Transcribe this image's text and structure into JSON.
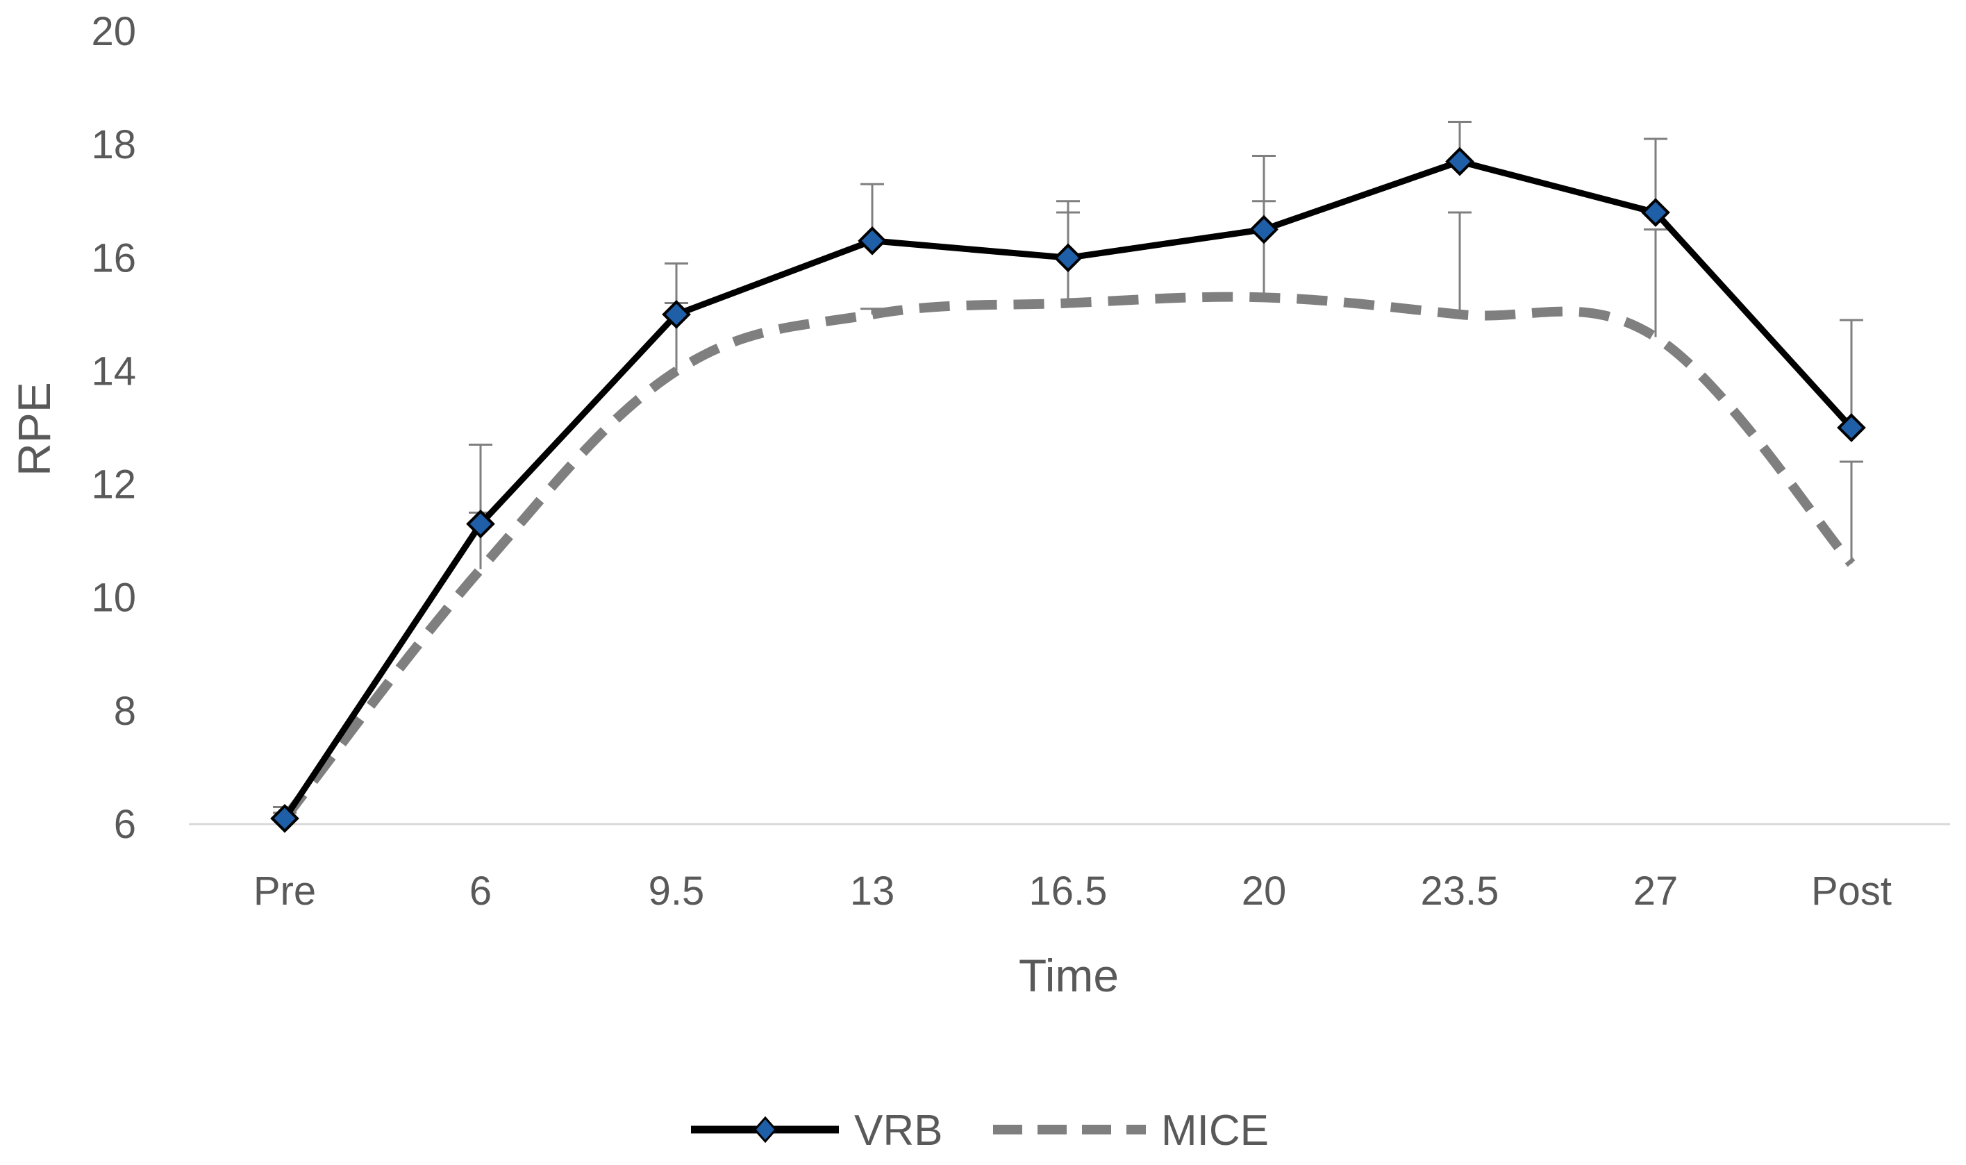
{
  "chart_data": {
    "type": "line",
    "title": "",
    "xlabel": "Time",
    "ylabel": "RPE",
    "categories": [
      "Pre",
      "6",
      "9.5",
      "13",
      "16.5",
      "20",
      "23.5",
      "27",
      "Post"
    ],
    "ylim": [
      6,
      20
    ],
    "yticks": [
      6,
      8,
      10,
      12,
      14,
      16,
      18,
      20
    ],
    "grid": false,
    "legend_position": "bottom-center",
    "series": [
      {
        "name": "VRB",
        "values": [
          6.1,
          11.3,
          15.0,
          16.3,
          16.0,
          16.5,
          17.7,
          16.8,
          13.0
        ],
        "error_upper": [
          6.3,
          12.7,
          15.9,
          17.3,
          16.8,
          17.8,
          18.4,
          18.1,
          14.9
        ],
        "color": "#000000",
        "marker": "diamond",
        "marker_color": "#1f5fa8",
        "line_style": "solid"
      },
      {
        "name": "MICE",
        "values": [
          6.1,
          10.5,
          14.0,
          15.0,
          15.2,
          15.3,
          15.0,
          14.6,
          10.6
        ],
        "error_upper": [
          6.2,
          11.5,
          15.2,
          15.1,
          17.0,
          17.0,
          16.8,
          16.5,
          12.4
        ],
        "color": "#7f7f7f",
        "marker": "none",
        "line_style": "dashed"
      }
    ]
  }
}
